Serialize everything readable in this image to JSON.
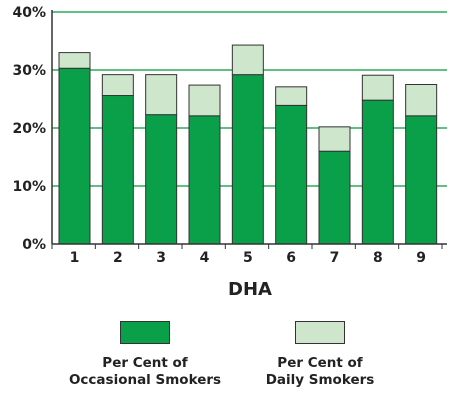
{
  "chart_data": {
    "type": "bar",
    "stacked": true,
    "xlabel": "DHA",
    "ylabel": "",
    "ylim": [
      0,
      40
    ],
    "yticks": [
      "0%",
      "10%",
      "20%",
      "30%",
      "40%"
    ],
    "grid": true,
    "categories": [
      "1",
      "2",
      "3",
      "4",
      "5",
      "6",
      "7",
      "8",
      "9"
    ],
    "series": [
      {
        "name": "Per Cent of Occasional Smokers",
        "color": "#0aa04a",
        "values": [
          30.3,
          25.6,
          22.3,
          22.1,
          29.2,
          23.9,
          16.0,
          24.8,
          22.1
        ]
      },
      {
        "name": "Per Cent of Daily Smokers",
        "color": "#cde6cc",
        "values": [
          2.7,
          3.6,
          6.9,
          5.3,
          5.1,
          3.2,
          4.2,
          4.3,
          5.4
        ]
      }
    ]
  },
  "legend": {
    "occasional_line1": "Per Cent of",
    "occasional_line2": "Occasional Smokers",
    "daily_line1": "Per Cent of",
    "daily_line2": "Daily Smokers"
  },
  "colors": {
    "grid": "#2eaa5a",
    "axis": "#333333"
  }
}
